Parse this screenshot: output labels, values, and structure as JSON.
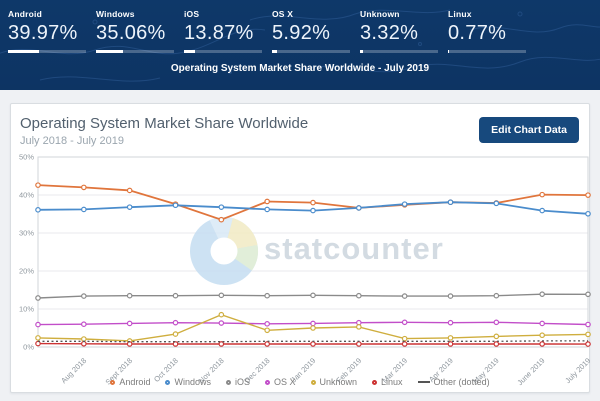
{
  "header": {
    "caption": "Operating System Market Share Worldwide - July 2019",
    "stats": [
      {
        "label": "Android",
        "value": "39.97%",
        "pct": 39.97
      },
      {
        "label": "Windows",
        "value": "35.06%",
        "pct": 35.06
      },
      {
        "label": "iOS",
        "value": "13.87%",
        "pct": 13.87
      },
      {
        "label": "OS X",
        "value": "5.92%",
        "pct": 5.92
      },
      {
        "label": "Unknown",
        "value": "3.32%",
        "pct": 3.32
      },
      {
        "label": "Linux",
        "value": "0.77%",
        "pct": 0.77
      }
    ]
  },
  "card": {
    "title": "Operating System Market Share Worldwide",
    "subtitle": "July 2018 - July 2019",
    "edit_button": "Edit Chart Data"
  },
  "watermark": {
    "text": "statcounter"
  },
  "colors": {
    "header_bg": "#0e3869",
    "button_bg": "#17497d",
    "grid": "#e8eaec",
    "plot_border": "#d2d6da",
    "axis_text": "#8f979e"
  },
  "chart_data": {
    "type": "line",
    "title": "Operating System Market Share Worldwide",
    "subtitle": "July 2018 - July 2019",
    "ylim": [
      0,
      50
    ],
    "grid": true,
    "legend_position": "bottom",
    "y_ticks": [
      "50%",
      "40%",
      "30%",
      "20%",
      "10%",
      "0%"
    ],
    "x_labels": [
      "",
      "Aug 2018",
      "Sept 2018",
      "Oct 2018",
      "Nov 2018",
      "Dec 2018",
      "Jan 2019",
      "Feb 2019",
      "Mar 2019",
      "Apr 2019",
      "May 2019",
      "June 2019",
      "July 2019"
    ],
    "series": [
      {
        "name": "Android",
        "color": "#e0753c",
        "dotted": false,
        "values": [
          42.6,
          42.0,
          41.2,
          37.6,
          33.5,
          38.3,
          38.0,
          36.6,
          37.4,
          38.1,
          37.9,
          40.1,
          39.97
        ]
      },
      {
        "name": "Windows",
        "color": "#4a8ccc",
        "dotted": false,
        "values": [
          36.1,
          36.2,
          36.8,
          37.3,
          36.8,
          36.2,
          35.9,
          36.6,
          37.6,
          38.1,
          37.8,
          35.9,
          35.06
        ]
      },
      {
        "name": "iOS",
        "color": "#8a8a8a",
        "dotted": false,
        "values": [
          12.9,
          13.4,
          13.5,
          13.5,
          13.6,
          13.5,
          13.6,
          13.5,
          13.4,
          13.4,
          13.5,
          13.9,
          13.87
        ]
      },
      {
        "name": "OS X",
        "color": "#c24ec9",
        "dotted": false,
        "values": [
          5.9,
          6.0,
          6.2,
          6.4,
          6.3,
          6.1,
          6.2,
          6.4,
          6.5,
          6.4,
          6.5,
          6.2,
          5.92
        ]
      },
      {
        "name": "Unknown",
        "color": "#cfae3e",
        "dotted": false,
        "values": [
          2.4,
          2.1,
          1.6,
          3.4,
          8.5,
          4.4,
          5.0,
          5.3,
          2.2,
          2.4,
          2.8,
          3.1,
          3.32
        ]
      },
      {
        "name": "Linux",
        "color": "#cc3333",
        "dotted": false,
        "values": [
          0.9,
          0.85,
          0.8,
          0.8,
          0.8,
          0.8,
          0.8,
          0.8,
          0.8,
          0.8,
          0.8,
          0.8,
          0.77
        ]
      },
      {
        "name": "Other (dotted)",
        "color": "#555555",
        "dotted": true,
        "values": [
          1.5,
          1.5,
          1.4,
          1.4,
          1.4,
          1.5,
          1.5,
          1.5,
          1.5,
          1.5,
          1.5,
          1.6,
          1.6
        ]
      }
    ]
  }
}
